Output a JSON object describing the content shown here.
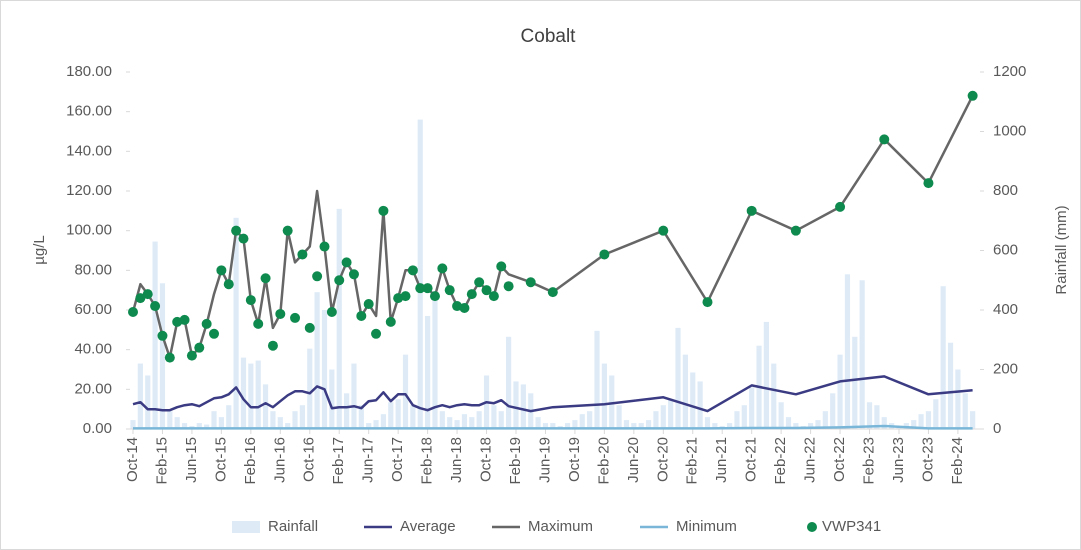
{
  "chart_data": {
    "type": "line",
    "title": "Cobalt",
    "y_label": "µg/L",
    "y2_label": "Rainfall (mm)",
    "xlim": [
      "Oct-14",
      "May-24"
    ],
    "xticks": [
      "Oct-14",
      "Feb-15",
      "Jun-15",
      "Oct-15",
      "Feb-16",
      "Jun-16",
      "Oct-16",
      "Feb-17",
      "Jun-17",
      "Oct-17",
      "Feb-18",
      "Jun-18",
      "Oct-18",
      "Feb-19",
      "Jun-19",
      "Oct-19",
      "Feb-20",
      "Jun-20",
      "Oct-20",
      "Feb-21",
      "Jun-21",
      "Oct-21",
      "Feb-22",
      "Jun-22",
      "Oct-22",
      "Feb-23",
      "Jun-23",
      "Oct-23",
      "Feb-24"
    ],
    "ylim": [
      0,
      180
    ],
    "yticks": [
      {
        "value": 0,
        "label": "0.00"
      },
      {
        "value": 20,
        "label": "20.00"
      },
      {
        "value": 40,
        "label": "40.00"
      },
      {
        "value": 60,
        "label": "60.00"
      },
      {
        "value": 80,
        "label": "80.00"
      },
      {
        "value": 100,
        "label": "100.00"
      },
      {
        "value": 120,
        "label": "120.00"
      },
      {
        "value": 140,
        "label": "140.00"
      },
      {
        "value": 160,
        "label": "160.00"
      },
      {
        "value": 180,
        "label": "180.00"
      }
    ],
    "y2lim": [
      0,
      1200
    ],
    "y2ticks": [
      0,
      200,
      400,
      600,
      800,
      1000,
      1200
    ],
    "legend": "bottom",
    "x": [
      "Oct-14",
      "Nov-14",
      "Dec-14",
      "Jan-15",
      "Feb-15",
      "Mar-15",
      "Apr-15",
      "May-15",
      "Jun-15",
      "Jul-15",
      "Aug-15",
      "Sep-15",
      "Oct-15",
      "Nov-15",
      "Dec-15",
      "Jan-16",
      "Feb-16",
      "Mar-16",
      "Apr-16",
      "May-16",
      "Jun-16",
      "Jul-16",
      "Aug-16",
      "Sep-16",
      "Oct-16",
      "Nov-16",
      "Dec-16",
      "Jan-17",
      "Feb-17",
      "Mar-17",
      "Apr-17",
      "May-17",
      "Jun-17",
      "Jul-17",
      "Aug-17",
      "Sep-17",
      "Oct-17",
      "Nov-17",
      "Dec-17",
      "Jan-18",
      "Feb-18",
      "Mar-18",
      "Apr-18",
      "May-18",
      "Jun-18",
      "Jul-18",
      "Aug-18",
      "Sep-18",
      "Oct-18",
      "Nov-18",
      "Dec-18",
      "Jan-19",
      "Apr-19",
      "Jul-19",
      "Feb-20",
      "Oct-20",
      "Apr-21",
      "Oct-21",
      "Apr-22",
      "Oct-22",
      "Apr-23",
      "Oct-23",
      "Apr-24"
    ],
    "series": [
      {
        "name": "Rainfall",
        "type": "bar",
        "axis": "y2",
        "color": "#deebf7",
        "x": [
          "Oct-14",
          "Nov-14",
          "Dec-14",
          "Jan-15",
          "Feb-15",
          "Mar-15",
          "Apr-15",
          "May-15",
          "Jun-15",
          "Jul-15",
          "Aug-15",
          "Sep-15",
          "Oct-15",
          "Nov-15",
          "Dec-15",
          "Jan-16",
          "Feb-16",
          "Mar-16",
          "Apr-16",
          "May-16",
          "Jun-16",
          "Jul-16",
          "Aug-16",
          "Sep-16",
          "Oct-16",
          "Nov-16",
          "Dec-16",
          "Jan-17",
          "Feb-17",
          "Mar-17",
          "Apr-17",
          "May-17",
          "Jun-17",
          "Jul-17",
          "Aug-17",
          "Sep-17",
          "Oct-17",
          "Nov-17",
          "Dec-17",
          "Jan-18",
          "Feb-18",
          "Mar-18",
          "Apr-18",
          "May-18",
          "Jun-18",
          "Jul-18",
          "Aug-18",
          "Sep-18",
          "Oct-18",
          "Nov-18",
          "Dec-18",
          "Jan-19",
          "Feb-19",
          "Mar-19",
          "Apr-19",
          "May-19",
          "Jun-19",
          "Jul-19",
          "Aug-19",
          "Sep-19",
          "Oct-19",
          "Nov-19",
          "Dec-19",
          "Jan-20",
          "Feb-20",
          "Mar-20",
          "Apr-20",
          "May-20",
          "Jun-20",
          "Jul-20",
          "Aug-20",
          "Sep-20",
          "Oct-20",
          "Nov-20",
          "Dec-20",
          "Jan-21",
          "Feb-21",
          "Mar-21",
          "Apr-21",
          "May-21",
          "Jun-21",
          "Jul-21",
          "Aug-21",
          "Sep-21",
          "Oct-21",
          "Nov-21",
          "Dec-21",
          "Jan-22",
          "Feb-22",
          "Mar-22",
          "Apr-22",
          "May-22",
          "Jun-22",
          "Jul-22",
          "Aug-22",
          "Sep-22",
          "Oct-22",
          "Nov-22",
          "Dec-22",
          "Jan-23",
          "Feb-23",
          "Mar-23",
          "Apr-23",
          "May-23",
          "Jun-23",
          "Jul-23",
          "Aug-23",
          "Sep-23",
          "Oct-23",
          "Nov-23",
          "Dec-23",
          "Jan-24",
          "Feb-24",
          "Mar-24",
          "Apr-24"
        ],
        "values": [
          30,
          220,
          180,
          630,
          490,
          60,
          40,
          20,
          10,
          20,
          15,
          60,
          40,
          80,
          710,
          240,
          220,
          230,
          150,
          60,
          40,
          20,
          60,
          80,
          270,
          460,
          400,
          200,
          740,
          120,
          220,
          80,
          20,
          30,
          50,
          90,
          100,
          250,
          80,
          1040,
          380,
          450,
          60,
          40,
          30,
          50,
          40,
          60,
          180,
          80,
          60,
          310,
          160,
          150,
          120,
          40,
          20,
          20,
          10,
          20,
          30,
          50,
          60,
          330,
          220,
          180,
          80,
          30,
          20,
          20,
          30,
          60,
          80,
          100,
          340,
          250,
          190,
          160,
          40,
          20,
          10,
          20,
          60,
          80,
          140,
          280,
          360,
          220,
          90,
          40,
          20,
          10,
          20,
          30,
          60,
          120,
          250,
          520,
          310,
          500,
          90,
          80,
          40,
          20,
          10,
          20,
          30,
          50,
          60,
          100,
          480,
          290,
          200,
          120,
          60
        ]
      },
      {
        "name": "Average",
        "type": "line",
        "color": "#3b3b83",
        "values": [
          12.5,
          13.5,
          10,
          10,
          9.5,
          9.5,
          11,
          12,
          12.5,
          11.5,
          13.5,
          15.5,
          16,
          17.5,
          21,
          15,
          11,
          11,
          13,
          11,
          14,
          17,
          19,
          19,
          18,
          21.5,
          20,
          10.5,
          11,
          11,
          11.5,
          10.5,
          14,
          14.5,
          18.5,
          14,
          17.5,
          17.5,
          12,
          10.5,
          9.5,
          11,
          12,
          11,
          12,
          12.5,
          12,
          12,
          13.5,
          13,
          14.5,
          11.5,
          9,
          11,
          12.5,
          16,
          9,
          22,
          17.5,
          24,
          26.5,
          17.5,
          19.5
        ]
      },
      {
        "name": "Maximum",
        "type": "line",
        "color": "#666666",
        "values": [
          59,
          73,
          68,
          62,
          47,
          36,
          54,
          55,
          37,
          41,
          53,
          68,
          80,
          73,
          100,
          96,
          65,
          53,
          76,
          51,
          58,
          100,
          84,
          88,
          92,
          120,
          92,
          59,
          75,
          84,
          78,
          57,
          63,
          57,
          110,
          54,
          66,
          80,
          80,
          71,
          71,
          67,
          81,
          70,
          62,
          61,
          68,
          74,
          70,
          67,
          82,
          78,
          74,
          69,
          88,
          100,
          64,
          110,
          100,
          112,
          146,
          124,
          168
        ]
      },
      {
        "name": "Minimum",
        "type": "line",
        "color": "#7ab6d8",
        "values": [
          0.3,
          0.3,
          0.3,
          0.3,
          0.3,
          0.3,
          0.3,
          0.3,
          0.3,
          0.3,
          0.3,
          0.3,
          0.3,
          0.3,
          0.3,
          0.3,
          0.3,
          0.3,
          0.3,
          0.3,
          0.3,
          0.3,
          0.3,
          0.3,
          0.3,
          0.3,
          0.3,
          0.3,
          0.3,
          0.3,
          0.3,
          0.3,
          0.3,
          0.3,
          0.3,
          0.3,
          0.3,
          0.3,
          0.3,
          0.3,
          0.3,
          0.3,
          0.3,
          0.3,
          0.3,
          0.3,
          0.3,
          0.3,
          0.3,
          0.3,
          0.3,
          0.3,
          0.3,
          0.3,
          0.3,
          0.3,
          0.3,
          0.5,
          0.5,
          0.8,
          1.5,
          0.3,
          0.3
        ]
      },
      {
        "name": "VWP341",
        "type": "scatter",
        "color": "#0e8a4f",
        "values": [
          59,
          66,
          68,
          62,
          47,
          36,
          54,
          55,
          37,
          41,
          53,
          48,
          80,
          73,
          100,
          96,
          65,
          53,
          76,
          42,
          58,
          100,
          56,
          88,
          51,
          77,
          92,
          59,
          75,
          84,
          78,
          57,
          63,
          48,
          110,
          54,
          66,
          67,
          80,
          71,
          71,
          67,
          81,
          70,
          62,
          61,
          68,
          74,
          70,
          67,
          82,
          72,
          74,
          69,
          88,
          100,
          64,
          110,
          100,
          112,
          146,
          124,
          168
        ]
      }
    ]
  }
}
